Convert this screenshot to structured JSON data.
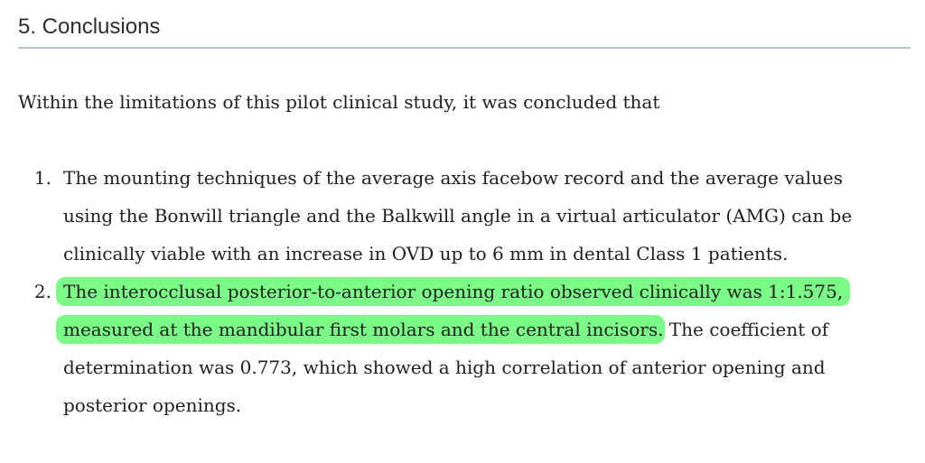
{
  "heading": {
    "text": "5. Conclusions",
    "color": "#2d2d2d",
    "rule_color": "#b7c6d3"
  },
  "intro": {
    "text": "Within the limitations of this pilot clinical study, it was concluded that"
  },
  "conclusions_list": {
    "items": [
      {
        "number": "1.",
        "lines": [
          "The mounting techniques of the average axis facebow record and the average values",
          "using the Bonwill triangle and the Balkwill angle in a virtual articulator (AMG) can be",
          "clinically viable with an increase in OVD up to 6 mm in dental Class 1 patients."
        ]
      },
      {
        "number": "2.",
        "highlight_color": "#7cfa87",
        "highlight_lines": [
          "The interocclusal posterior-to-anterior opening ratio observed clinically was 1:1.575,",
          "measured at the mandibular first molars and the central incisors"
        ],
        "plain_lines": [
          ". The coefficient of",
          "determination was 0.773, which showed a high correlation of anterior opening and",
          "posterior openings."
        ]
      }
    ]
  },
  "colors": {
    "background": "#ffffff",
    "body_text": "#1f1f1f",
    "heading_text": "#2d2d2d",
    "heading_rule": "#b7c6d3",
    "highlight": "#7cfa87"
  }
}
